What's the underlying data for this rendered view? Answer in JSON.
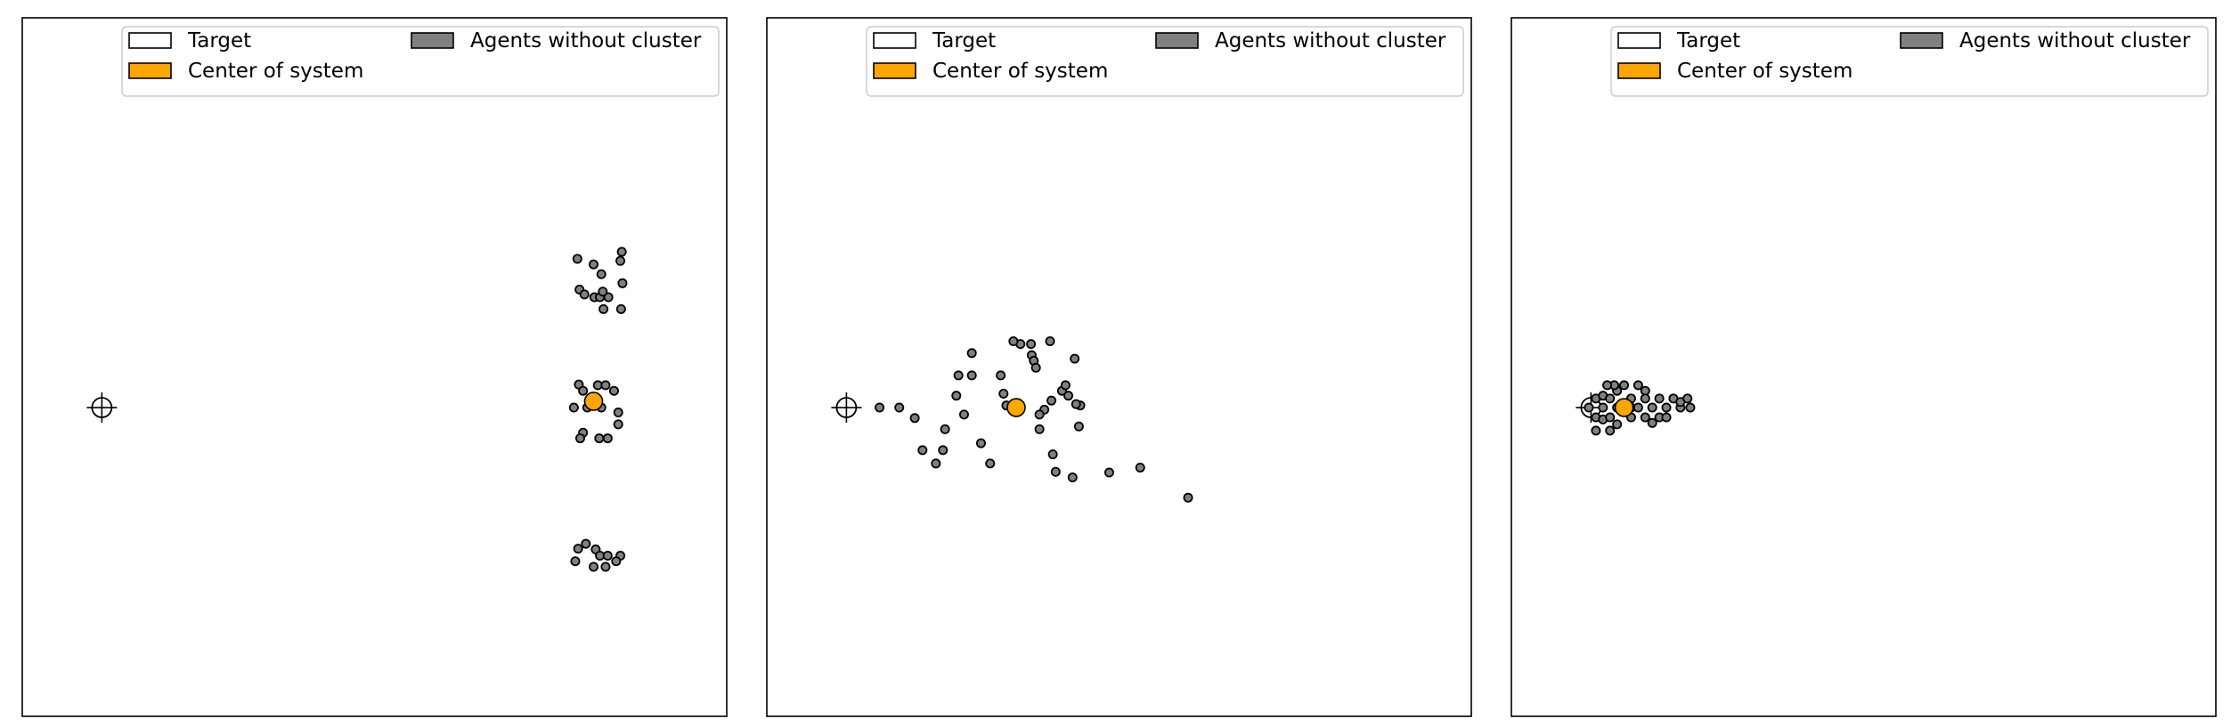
{
  "figure": {
    "legend": {
      "target_label": "Target",
      "center_label": "Center of system",
      "agents_label": "Agents without cluster",
      "target_color": "#ffffff",
      "center_color": "#ffa500",
      "agents_color": "#808080",
      "placement": "top-right"
    }
  },
  "chart_data": [
    {
      "type": "scatter",
      "title": "",
      "xlim": [
        0,
        100
      ],
      "ylim": [
        0,
        100
      ],
      "axis_ticks": false,
      "grid": false,
      "target": {
        "x": 11.3,
        "y": 44.2
      },
      "center": {
        "x": 81.1,
        "y": 45.1
      },
      "agents": [
        [
          78.8,
          65.5
        ],
        [
          81.1,
          64.7
        ],
        [
          84.9,
          65.2
        ],
        [
          85.1,
          66.5
        ],
        [
          82.2,
          63.3
        ],
        [
          79.1,
          61.1
        ],
        [
          79.8,
          60.4
        ],
        [
          81.2,
          60.0
        ],
        [
          82.0,
          60.0
        ],
        [
          83.2,
          60.0
        ],
        [
          82.4,
          60.8
        ],
        [
          85.2,
          62.0
        ],
        [
          82.5,
          58.3
        ],
        [
          85.0,
          58.3
        ],
        [
          79.0,
          47.5
        ],
        [
          79.6,
          46.6
        ],
        [
          81.7,
          47.4
        ],
        [
          82.8,
          47.4
        ],
        [
          84.0,
          46.6
        ],
        [
          78.3,
          44.2
        ],
        [
          80.2,
          44.2
        ],
        [
          82.2,
          44.2
        ],
        [
          81.6,
          45.4
        ],
        [
          84.6,
          43.5
        ],
        [
          84.6,
          41.8
        ],
        [
          79.6,
          40.6
        ],
        [
          79.2,
          39.8
        ],
        [
          81.9,
          39.8
        ],
        [
          83.1,
          39.8
        ],
        [
          78.9,
          24.0
        ],
        [
          80.0,
          24.7
        ],
        [
          81.4,
          23.9
        ],
        [
          82.0,
          23.0
        ],
        [
          83.1,
          23.0
        ],
        [
          84.9,
          23.0
        ],
        [
          78.5,
          22.2
        ],
        [
          81.1,
          21.4
        ],
        [
          82.8,
          21.4
        ],
        [
          84.3,
          22.2
        ]
      ]
    },
    {
      "type": "scatter",
      "title": "",
      "xlim": [
        0,
        100
      ],
      "ylim": [
        0,
        100
      ],
      "axis_ticks": false,
      "grid": false,
      "target": {
        "x": 11.3,
        "y": 44.2
      },
      "center": {
        "x": 35.4,
        "y": 44.2
      },
      "agents": [
        [
          16.0,
          44.2
        ],
        [
          18.8,
          44.2
        ],
        [
          21.0,
          42.7
        ],
        [
          29.1,
          52.0
        ],
        [
          27.2,
          48.8
        ],
        [
          29.1,
          48.8
        ],
        [
          26.9,
          45.9
        ],
        [
          28.0,
          43.2
        ],
        [
          25.3,
          41.1
        ],
        [
          33.2,
          48.8
        ],
        [
          34.0,
          44.5
        ],
        [
          36.0,
          53.3
        ],
        [
          35.0,
          53.7
        ],
        [
          37.5,
          53.3
        ],
        [
          40.2,
          53.7
        ],
        [
          37.6,
          51.7
        ],
        [
          37.9,
          50.9
        ],
        [
          38.2,
          49.9
        ],
        [
          43.7,
          51.2
        ],
        [
          39.4,
          43.9
        ],
        [
          38.7,
          43.2
        ],
        [
          38.7,
          41.1
        ],
        [
          33.6,
          46.2
        ],
        [
          40.4,
          45.2
        ],
        [
          41.9,
          46.6
        ],
        [
          42.4,
          47.4
        ],
        [
          42.8,
          45.9
        ],
        [
          44.5,
          44.5
        ],
        [
          43.9,
          44.7
        ],
        [
          44.3,
          41.5
        ],
        [
          22.1,
          38.1
        ],
        [
          25.0,
          38.1
        ],
        [
          31.7,
          36.2
        ],
        [
          24.0,
          36.2
        ],
        [
          30.4,
          39.1
        ],
        [
          41.0,
          35.0
        ],
        [
          40.6,
          37.5
        ],
        [
          43.4,
          34.2
        ],
        [
          48.6,
          34.9
        ],
        [
          53.0,
          35.6
        ],
        [
          59.8,
          31.3
        ]
      ]
    },
    {
      "type": "scatter",
      "title": "",
      "xlim": [
        0,
        100
      ],
      "ylim": [
        0,
        100
      ],
      "axis_ticks": false,
      "grid": false,
      "target": {
        "x": 11.3,
        "y": 44.2
      },
      "center": {
        "x": 16.0,
        "y": 44.2
      },
      "agents": [
        [
          12.0,
          45.5
        ],
        [
          12.0,
          42.8
        ],
        [
          11.0,
          44.2
        ],
        [
          13.0,
          44.2
        ],
        [
          13.0,
          45.9
        ],
        [
          13.0,
          42.5
        ],
        [
          14.0,
          45.5
        ],
        [
          14.0,
          42.8
        ],
        [
          15.0,
          44.2
        ],
        [
          15.0,
          46.6
        ],
        [
          15.0,
          41.8
        ],
        [
          16.0,
          47.4
        ],
        [
          14.6,
          47.4
        ],
        [
          13.6,
          47.4
        ],
        [
          14.0,
          40.9
        ],
        [
          17.0,
          44.2
        ],
        [
          17.0,
          42.8
        ],
        [
          17.0,
          45.5
        ],
        [
          18.0,
          44.2
        ],
        [
          18.0,
          47.4
        ],
        [
          19.0,
          46.6
        ],
        [
          19.0,
          42.8
        ],
        [
          19.0,
          45.5
        ],
        [
          20.0,
          44.2
        ],
        [
          20.0,
          42.0
        ],
        [
          21.0,
          45.5
        ],
        [
          21.0,
          42.8
        ],
        [
          22.0,
          44.2
        ],
        [
          22.0,
          42.8
        ],
        [
          23.0,
          45.5
        ],
        [
          24.0,
          44.2
        ],
        [
          24.0,
          45.0
        ],
        [
          25.0,
          45.5
        ],
        [
          25.4,
          44.2
        ],
        [
          12.0,
          40.9
        ]
      ]
    }
  ]
}
